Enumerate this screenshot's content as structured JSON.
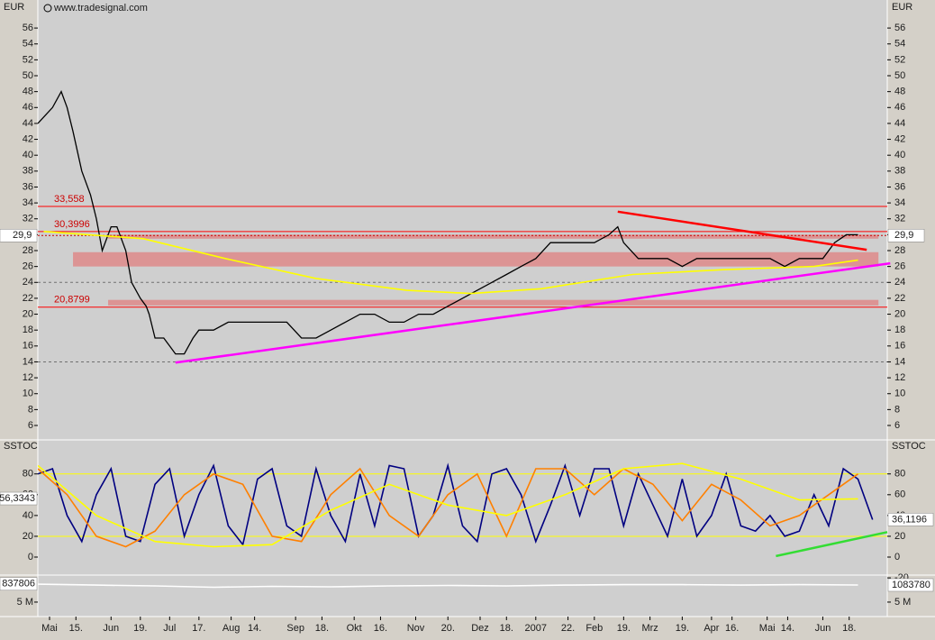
{
  "header": {
    "source": "www.tradesignal.com"
  },
  "x_axis": {
    "xlim": [
      0,
      290
    ],
    "xticks": [
      {
        "value": 4,
        "label": "Mai"
      },
      {
        "value": 13,
        "label": "15."
      },
      {
        "value": 25,
        "label": "Jun"
      },
      {
        "value": 35,
        "label": "19."
      },
      {
        "value": 45,
        "label": "Jul"
      },
      {
        "value": 55,
        "label": "17."
      },
      {
        "value": 66,
        "label": "Aug"
      },
      {
        "value": 74,
        "label": "14."
      },
      {
        "value": 88,
        "label": "Sep"
      },
      {
        "value": 97,
        "label": "18."
      },
      {
        "value": 108,
        "label": "Okt"
      },
      {
        "value": 117,
        "label": "16."
      },
      {
        "value": 129,
        "label": "Nov"
      },
      {
        "value": 140,
        "label": "20."
      },
      {
        "value": 151,
        "label": "Dez"
      },
      {
        "value": 160,
        "label": "18."
      },
      {
        "value": 170,
        "label": "2007"
      },
      {
        "value": 181,
        "label": "22."
      },
      {
        "value": 190,
        "label": "Feb"
      },
      {
        "value": 200,
        "label": "19."
      },
      {
        "value": 209,
        "label": "Mrz"
      },
      {
        "value": 220,
        "label": "19."
      },
      {
        "value": 230,
        "label": "Apr"
      },
      {
        "value": 237,
        "label": "16."
      },
      {
        "value": 249,
        "label": "Mai"
      },
      {
        "value": 256,
        "label": "14."
      },
      {
        "value": 268,
        "label": "Jun"
      },
      {
        "value": 277,
        "label": "18."
      }
    ]
  },
  "chart_data": [
    {
      "type": "line",
      "unit": "EUR",
      "ylim": [
        4.3,
        59.3
      ],
      "yticks": [
        6,
        8,
        10,
        12,
        14,
        16,
        18,
        20,
        22,
        24,
        26,
        28,
        30,
        32,
        34,
        36,
        38,
        40,
        42,
        44,
        46,
        48,
        50,
        52,
        54,
        56
      ],
      "series": [
        {
          "color": "#000000",
          "x": [
            0,
            5,
            8,
            10,
            12,
            15,
            18,
            20,
            22,
            25,
            27,
            30,
            32,
            35,
            37,
            38,
            40,
            43,
            45,
            47,
            50,
            53,
            55,
            60,
            65,
            70,
            75,
            80,
            85,
            90,
            95,
            100,
            105,
            110,
            115,
            120,
            125,
            130,
            135,
            140,
            145,
            150,
            155,
            160,
            165,
            170,
            175,
            180,
            185,
            190,
            195,
            198,
            200,
            205,
            210,
            215,
            220,
            225,
            230,
            235,
            240,
            245,
            250,
            255,
            260,
            265,
            268,
            272,
            276,
            280
          ],
          "values": [
            44,
            46,
            48,
            46,
            43,
            38,
            35,
            32,
            28,
            31,
            31,
            28,
            24,
            22,
            21,
            20,
            17,
            17,
            16,
            15,
            15,
            17,
            18,
            18,
            19,
            19,
            19,
            19,
            19,
            17,
            17,
            18,
            19,
            20,
            20,
            19,
            19,
            20,
            20,
            21,
            22,
            23,
            24,
            25,
            26,
            27,
            29,
            29,
            29,
            29,
            30,
            31,
            29,
            27,
            27,
            27,
            26,
            27,
            27,
            27,
            27,
            27,
            27,
            26,
            27,
            27,
            27,
            29,
            30,
            30
          ]
        },
        {
          "color": "#ffff00",
          "x": [
            2,
            36,
            64,
            95,
            126,
            148,
            172,
            203,
            234,
            265,
            280
          ],
          "values": [
            30.4,
            29.5,
            27,
            24.5,
            23,
            22.6,
            23.2,
            25,
            25.6,
            26,
            26.8
          ]
        }
      ],
      "trendlines": [
        {
          "color": "#ff00ff",
          "x": [
            47,
            291
          ],
          "values": [
            13.9,
            26.4
          ]
        },
        {
          "color": "#ff0000",
          "x": [
            198,
            283
          ],
          "values": [
            32.9,
            28.1
          ]
        }
      ],
      "bands": [
        {
          "from": 12,
          "to": 287,
          "low": 26,
          "high": 27.8
        },
        {
          "from": 24,
          "to": 287,
          "low": 21.1,
          "high": 21.8
        },
        {
          "from": 24,
          "to": 287,
          "low": 29.5,
          "high": 30
        }
      ],
      "levels": [
        {
          "value": 33.558,
          "label": "33,558"
        },
        {
          "value": 30.3996,
          "label": "30,3996"
        },
        {
          "value": 20.8799,
          "label": "20,8799"
        }
      ],
      "dashed_levels": [
        24,
        14
      ],
      "last": {
        "value": 29.9,
        "label": "29,9"
      }
    },
    {
      "type": "line",
      "title": "SSTOC",
      "ylim": [
        -15.6,
        111
      ],
      "yticks": [
        0,
        20,
        40,
        60,
        80
      ],
      "y2lim": [
        -15.6,
        111
      ],
      "y2ticks": [
        -20,
        0,
        20,
        40,
        60,
        80
      ],
      "levels": [
        80,
        20
      ],
      "level_color": "#ffff00",
      "series": [
        {
          "color": "#000080",
          "x": [
            0,
            5,
            10,
            15,
            20,
            25,
            30,
            35,
            40,
            45,
            50,
            55,
            60,
            65,
            70,
            75,
            80,
            85,
            90,
            95,
            100,
            105,
            110,
            115,
            120,
            125,
            130,
            135,
            140,
            145,
            150,
            155,
            160,
            165,
            170,
            175,
            180,
            185,
            190,
            195,
            200,
            205,
            210,
            215,
            220,
            225,
            230,
            235,
            240,
            245,
            250,
            255,
            260,
            265,
            270,
            275,
            280,
            285
          ],
          "values": [
            80,
            85,
            40,
            15,
            60,
            85,
            20,
            15,
            70,
            85,
            20,
            60,
            88,
            30,
            12,
            75,
            85,
            30,
            20,
            85,
            40,
            15,
            80,
            30,
            88,
            85,
            20,
            40,
            88,
            30,
            15,
            80,
            85,
            60,
            15,
            50,
            88,
            40,
            85,
            85,
            30,
            80,
            50,
            20,
            75,
            20,
            40,
            80,
            30,
            25,
            40,
            20,
            25,
            60,
            30,
            85,
            75,
            36
          ]
        },
        {
          "color": "#ff8000",
          "x": [
            0,
            10,
            20,
            30,
            40,
            50,
            60,
            70,
            80,
            90,
            100,
            110,
            120,
            130,
            140,
            150,
            160,
            170,
            180,
            190,
            200,
            210,
            220,
            230,
            240,
            250,
            260,
            270,
            280
          ],
          "values": [
            85,
            60,
            20,
            10,
            25,
            60,
            80,
            70,
            20,
            15,
            60,
            85,
            40,
            20,
            60,
            80,
            20,
            85,
            85,
            60,
            85,
            70,
            35,
            70,
            55,
            30,
            40,
            60,
            80
          ]
        },
        {
          "color": "#ffff00",
          "x": [
            0,
            20,
            40,
            60,
            80,
            100,
            120,
            140,
            160,
            180,
            200,
            220,
            240,
            260,
            280
          ],
          "values": [
            88,
            40,
            15,
            10,
            12,
            45,
            70,
            50,
            40,
            60,
            85,
            90,
            75,
            55,
            56
          ]
        }
      ],
      "trendlines": [
        {
          "color": "#33dd33",
          "x": [
            252,
            290
          ],
          "values": [
            1,
            24
          ]
        }
      ],
      "last_values": [
        {
          "value": 56.3343,
          "label": "56,3343",
          "side": "left"
        },
        {
          "value": 36.1196,
          "label": "36,1196",
          "side": "right"
        }
      ]
    },
    {
      "type": "line",
      "ylim": [
        7900000,
        -770000
      ],
      "yticks": [
        {
          "value": 5000000,
          "label": "5 M"
        }
      ],
      "series": [
        {
          "color": "#ffffff",
          "x": [
            0,
            20,
            40,
            60,
            80,
            100,
            120,
            140,
            160,
            180,
            200,
            220,
            240,
            260,
            280
          ],
          "values": [
            900000,
            1100000,
            1300000,
            1600000,
            1400000,
            1500000,
            1300000,
            1200000,
            1300000,
            1100000,
            1000000,
            1000000,
            1100000,
            1000000,
            1083780
          ]
        }
      ],
      "last_values": [
        {
          "value": 837806,
          "label": "837806",
          "side": "left"
        },
        {
          "value": 1083780,
          "label": "1083780",
          "side": "right"
        }
      ]
    }
  ]
}
